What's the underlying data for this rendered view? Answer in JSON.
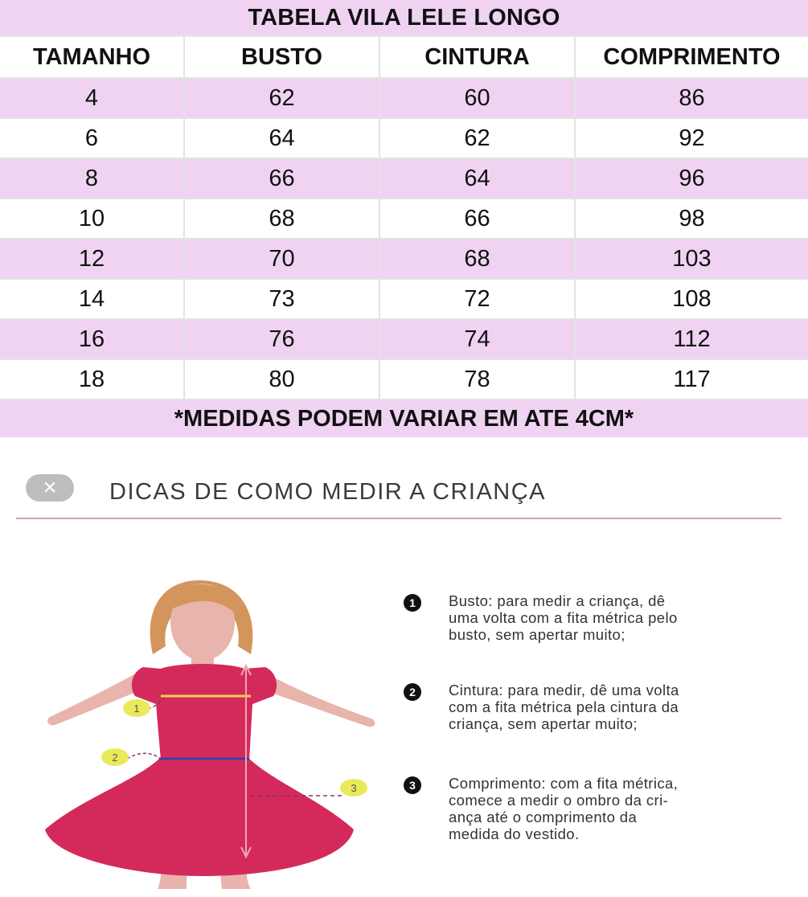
{
  "title": "TABELA VILA LELE LONGO",
  "headers": [
    "TAMANHO",
    "BUSTO",
    "CINTURA",
    "COMPRIMENTO"
  ],
  "rows": [
    [
      "4",
      "62",
      "60",
      "86"
    ],
    [
      "6",
      "64",
      "62",
      "92"
    ],
    [
      "8",
      "66",
      "64",
      "96"
    ],
    [
      "10",
      "68",
      "66",
      "98"
    ],
    [
      "12",
      "70",
      "68",
      "103"
    ],
    [
      "14",
      "73",
      "72",
      "108"
    ],
    [
      "16",
      "76",
      "74",
      "112"
    ],
    [
      "18",
      "80",
      "78",
      "117"
    ]
  ],
  "note": "*MEDIDAS PODEM VARIAR EM ATE 4CM*",
  "tips": {
    "close_symbol": "×",
    "title": "DICAS DE COMO MEDIR A CRIANÇA",
    "markers": [
      "1",
      "2",
      "3"
    ],
    "items": [
      {
        "num": "1",
        "lines": [
          "Busto: para medir a criança, dê",
          "uma volta com a fita métrica pelo",
          "busto, sem apertar muito;"
        ]
      },
      {
        "num": "2",
        "lines": [
          "Cintura: para medir, dê uma volta",
          "com a fita métrica pela cintura da",
          "criança, sem apertar muito;"
        ]
      },
      {
        "num": "3",
        "lines": [
          "Comprimento: com a fita métrica,",
          "comece a medir o ombro da cri-",
          "ança até o comprimento da",
          "medida do vestido."
        ]
      }
    ]
  },
  "colors": {
    "row_pink": "#f0d3f3",
    "dress": "#d42a5b",
    "skin": "#e8b4ab",
    "hair": "#d4955c",
    "bust_line": "#f2d24a",
    "waist_line": "#3b3fa6",
    "marker": "#e9ea5a"
  }
}
